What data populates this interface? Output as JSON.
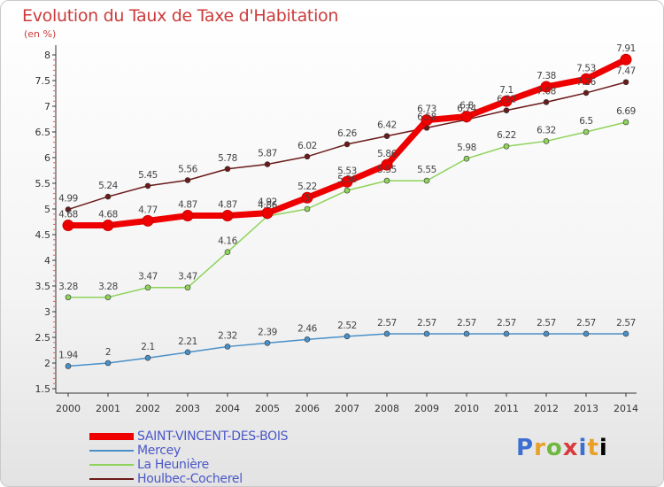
{
  "title": "Evolution du Taux de Taxe d'Habitation",
  "unit_label": "(en %)",
  "logo_letters": [
    "P",
    "r",
    "o",
    "x",
    "i",
    "t",
    "i"
  ],
  "chart_data": {
    "type": "line",
    "x": [
      "2000",
      "2001",
      "2002",
      "2003",
      "2004",
      "2005",
      "2006",
      "2007",
      "2008",
      "2009",
      "2010",
      "2011",
      "2012",
      "2013",
      "2014"
    ],
    "ylim": [
      1.5,
      8
    ],
    "yticks": [
      "1.5",
      "2",
      "2.5",
      "3",
      "3.5",
      "4",
      "4.5",
      "5",
      "5.5",
      "6",
      "6.5",
      "7",
      "7.5",
      "8"
    ],
    "grid": false,
    "legend_position": "bottom-left",
    "series": [
      {
        "name": "SAINT-VINCENT-DES-BOIS",
        "color": "#ee0000",
        "values": [
          4.68,
          4.68,
          4.77,
          4.87,
          4.87,
          4.92,
          5.22,
          5.53,
          5.86,
          6.73,
          6.8,
          7.1,
          7.38,
          7.53,
          7.91
        ],
        "labels": [
          "4.68",
          "4.68",
          "4.77",
          "4.87",
          "4.87",
          "4.92",
          "5.22",
          "5.53",
          "5.86",
          "6.73",
          "6.8",
          "7.1",
          "7.38",
          "7.53",
          "7.91"
        ]
      },
      {
        "name": "Mercey",
        "color": "#4a90c8",
        "values": [
          1.94,
          2,
          2.1,
          2.21,
          2.32,
          2.39,
          2.46,
          2.52,
          2.57,
          2.57,
          2.57,
          2.57,
          2.57,
          2.57,
          2.57
        ],
        "labels": [
          "1.94",
          "2",
          "2.1",
          "2.21",
          "2.32",
          "2.39",
          "2.46",
          "2.52",
          "2.57",
          "2.57",
          "2.57",
          "2.57",
          "2.57",
          "2.57",
          "2.57"
        ]
      },
      {
        "name": "La Heunière",
        "color": "#8ed35a",
        "values": [
          3.28,
          3.28,
          3.47,
          3.47,
          4.16,
          4.86,
          5.0,
          5.36,
          5.55,
          5.55,
          5.98,
          6.22,
          6.32,
          6.5,
          6.69
        ],
        "labels": [
          "3.28",
          "3.28",
          "3.47",
          "3.47",
          "4.16",
          "4.86",
          "5",
          "5.36",
          "5.55",
          "5.55",
          "5.98",
          "6.22",
          "6.32",
          "6.5",
          "6.69"
        ]
      },
      {
        "name": "Houlbec-Cocherel",
        "color": "#6b1a1a",
        "values": [
          4.99,
          5.24,
          5.45,
          5.56,
          5.78,
          5.87,
          6.02,
          6.26,
          6.42,
          6.58,
          6.74,
          6.92,
          7.08,
          7.26,
          7.47
        ],
        "labels": [
          "4.99",
          "5.24",
          "5.45",
          "5.56",
          "5.78",
          "5.87",
          "6.02",
          "6.26",
          "6.42",
          "6.58",
          "6.74",
          "6.92",
          "7.08",
          "7.26",
          "7.47"
        ]
      }
    ]
  }
}
